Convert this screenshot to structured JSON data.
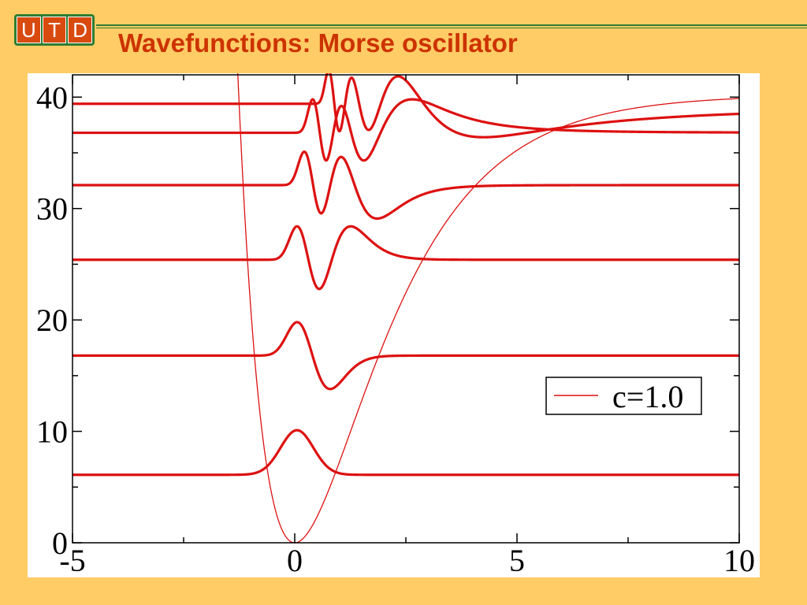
{
  "header": {
    "logo_letters": [
      "U",
      "T",
      "D"
    ],
    "title": "Wavefunctions: Morse oscillator",
    "accent_color": "#cc3300",
    "brand_green": "#2e7d32"
  },
  "chart_data": {
    "type": "line",
    "title": "",
    "xlabel": "",
    "ylabel": "",
    "xlim": [
      -5,
      10
    ],
    "ylim": [
      0,
      42
    ],
    "x_ticks": [
      -5,
      0,
      5,
      10
    ],
    "y_ticks": [
      0,
      10,
      20,
      30,
      40
    ],
    "grid": false,
    "line_color": "#dd1111",
    "potential": {
      "name": "c=1.0",
      "form": "Morse",
      "well_depth": 40.2,
      "a": 0.55,
      "x_min": 0
    },
    "energy_levels": [
      6.1,
      16.8,
      25.4,
      32.1,
      36.8,
      39.4
    ],
    "wavefunction_amplitude": 4,
    "legend": {
      "entries": [
        "c=1.0"
      ],
      "position": "right"
    }
  }
}
